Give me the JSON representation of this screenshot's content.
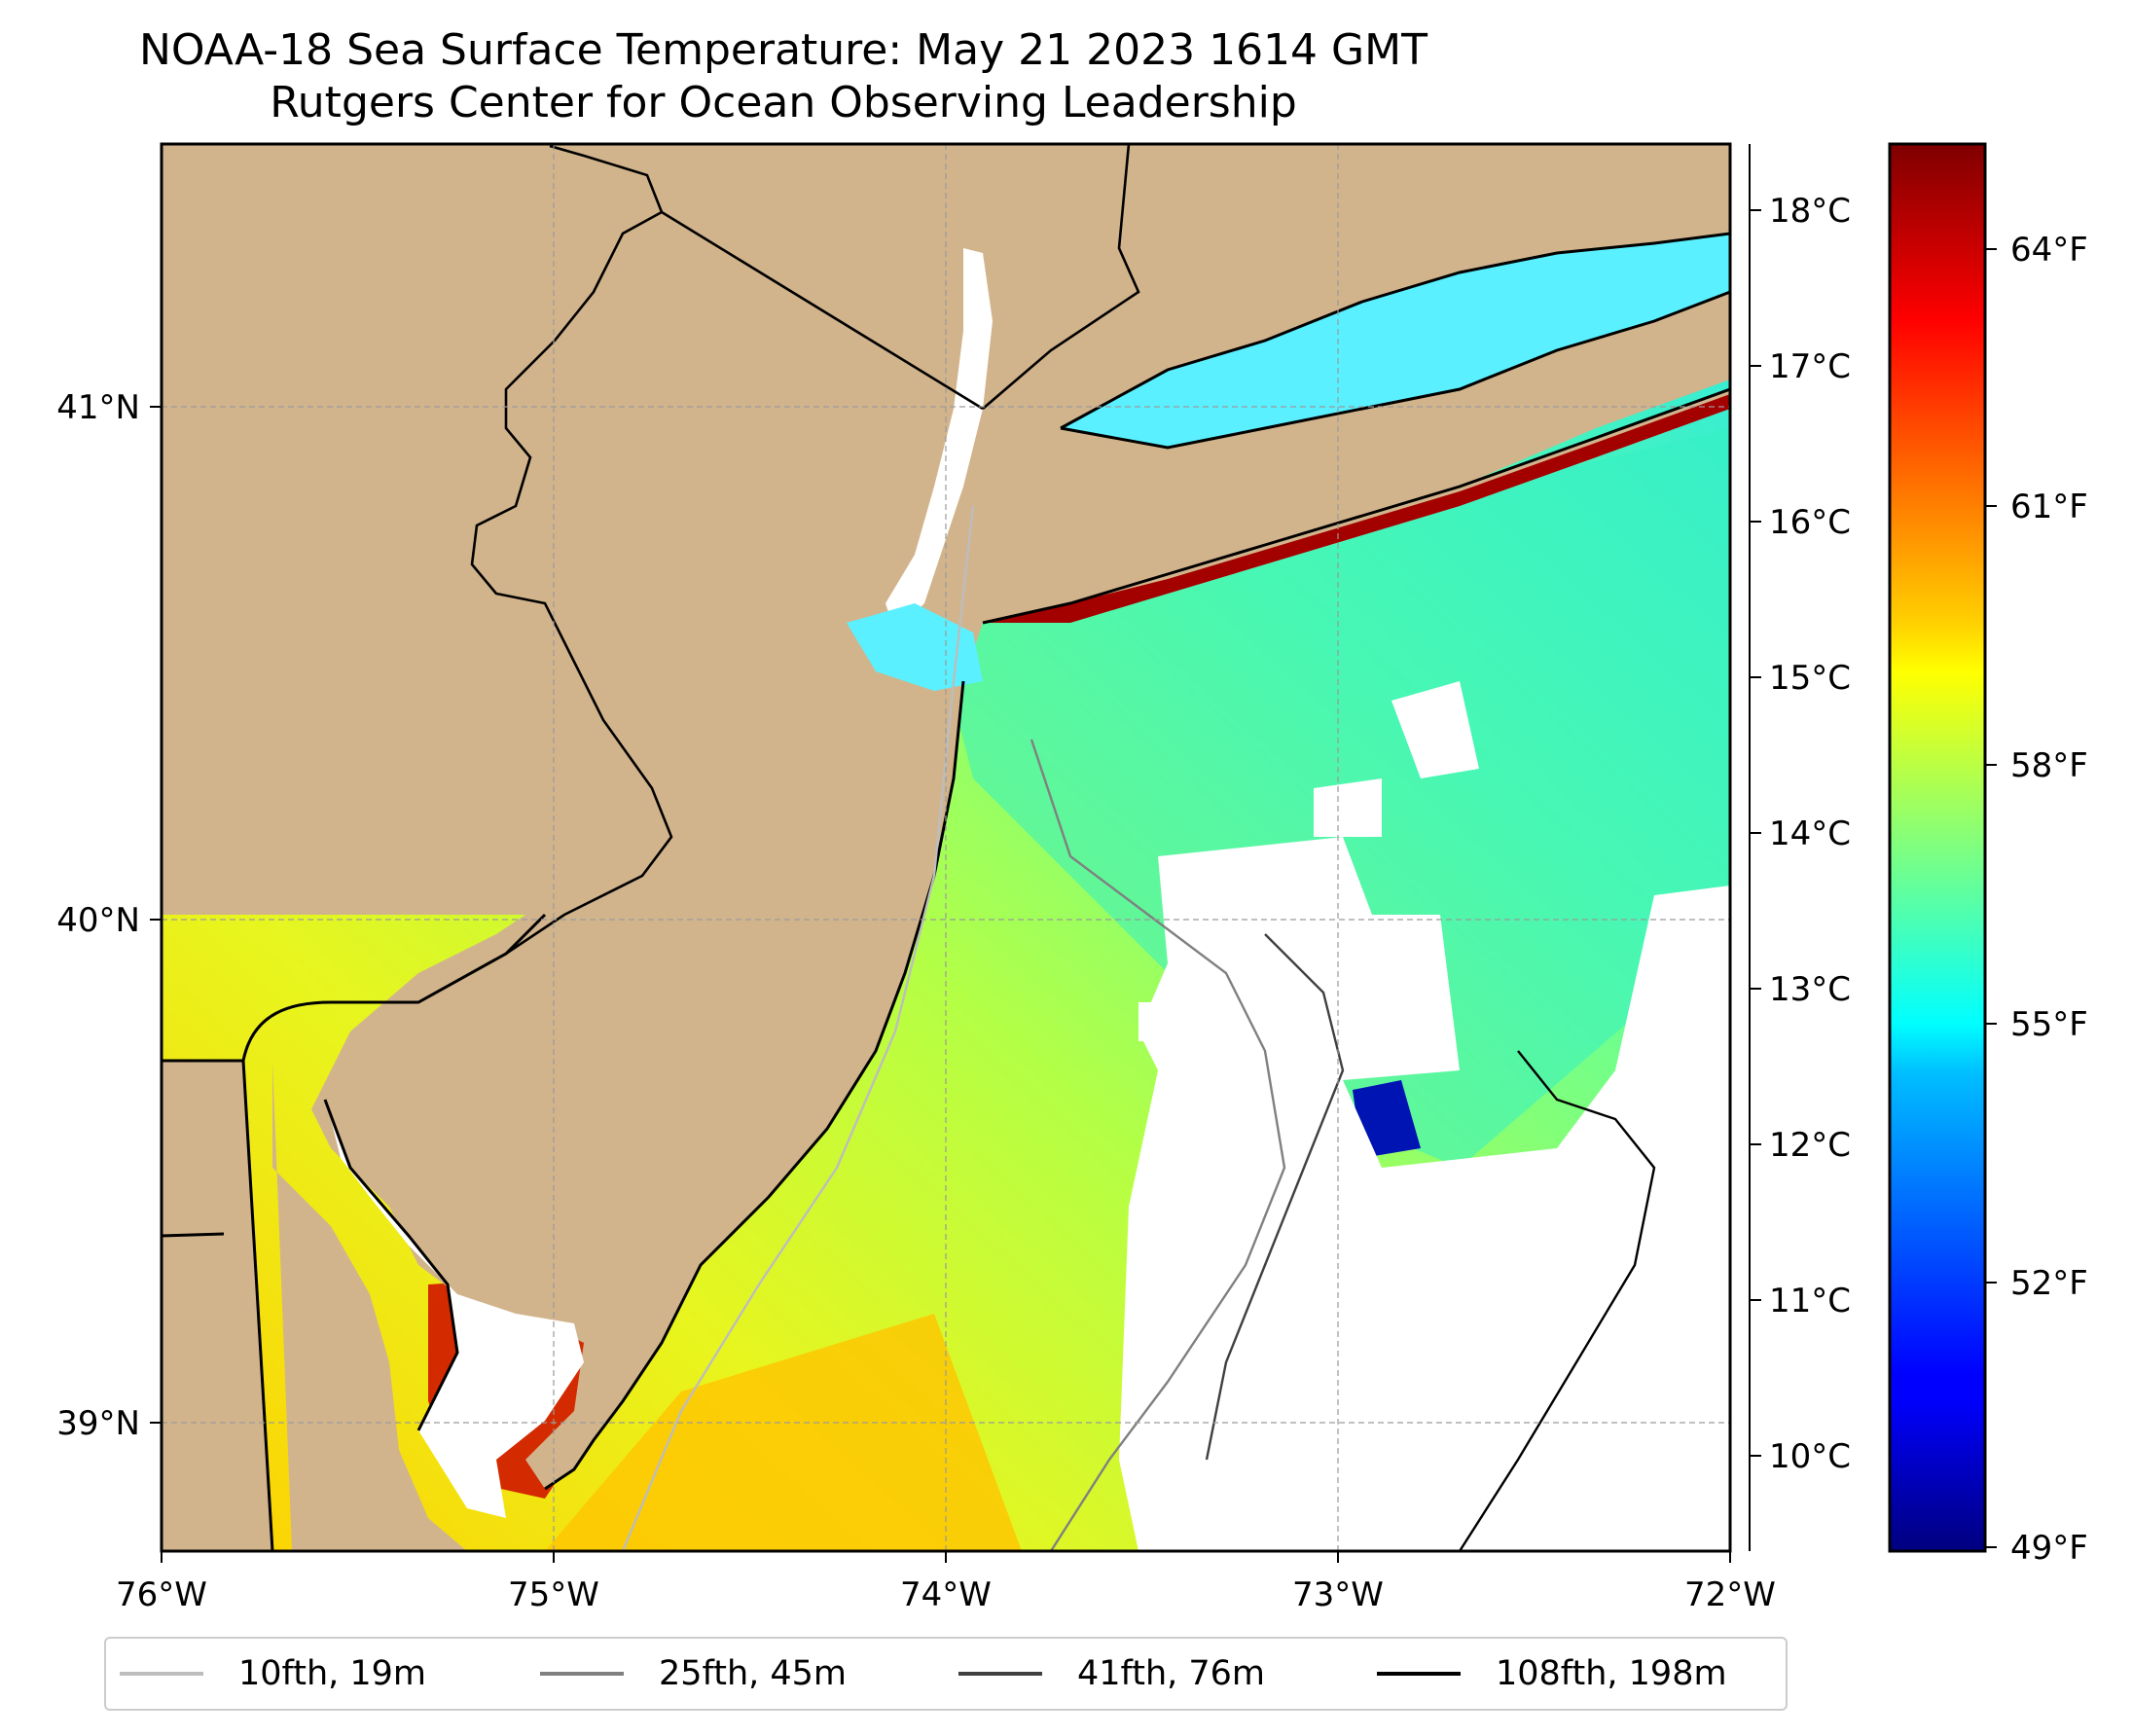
{
  "title": {
    "line1": "NOAA-18 Sea Surface Temperature: May 21 2023 1614 GMT",
    "line2": "Rutgers Center for Ocean Observing Leadership"
  },
  "map": {
    "lon_labels": [
      "76°W",
      "75°W",
      "74°W",
      "73°W",
      "72°W"
    ],
    "lat_labels": [
      "41°N",
      "40°N",
      "39°N"
    ],
    "extent": {
      "lon_min": -76.0,
      "lon_max": -72.0,
      "lat_min": 38.73,
      "lat_max": 41.52
    },
    "colors": {
      "land": "#d2b48c",
      "grid": "#9a9a9a",
      "coast": "#000000"
    }
  },
  "colorbar": {
    "celsius_labels": [
      "18°C",
      "17°C",
      "16°C",
      "15°C",
      "14°C",
      "13°C",
      "12°C",
      "11°C",
      "10°C"
    ],
    "fahrenheit_labels": [
      "64°F",
      "61°F",
      "58°F",
      "55°F",
      "52°F",
      "49°F"
    ],
    "colormap": "jet"
  },
  "legend": {
    "items": [
      {
        "label": "10fth, 19m",
        "color": "#bdbdbd"
      },
      {
        "label": "25fth, 45m",
        "color": "#808080"
      },
      {
        "label": "41fth, 76m",
        "color": "#404040"
      },
      {
        "label": "108fth, 198m",
        "color": "#000000"
      }
    ]
  }
}
